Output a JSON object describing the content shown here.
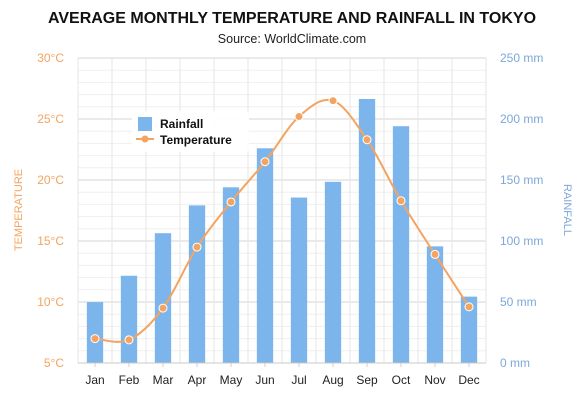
{
  "chart_data": {
    "type": "bar+line",
    "title": "AVERAGE MONTHLY TEMPERATURE AND RAINFALL IN TOKYO",
    "subtitle": "Source: WorldClimate.com",
    "categories": [
      "Jan",
      "Feb",
      "Mar",
      "Apr",
      "May",
      "Jun",
      "Jul",
      "Aug",
      "Sep",
      "Oct",
      "Nov",
      "Dec"
    ],
    "left_axis": {
      "label": "TEMPERATURE",
      "ticks": [
        "5°C",
        "10°C",
        "15°C",
        "20°C",
        "25°C",
        "30°C"
      ],
      "range": [
        5,
        30
      ],
      "color": "#f4a460"
    },
    "right_axis": {
      "label": "RAINFALL",
      "ticks": [
        "0 mm",
        "50 mm",
        "100 mm",
        "150 mm",
        "200 mm",
        "250 mm"
      ],
      "range": [
        0,
        250
      ],
      "color": "#7da7d9"
    },
    "series": [
      {
        "name": "Rainfall",
        "type": "bar",
        "axis": "right",
        "color": "#7cb5ec",
        "values": [
          49.9,
          71.5,
          106.4,
          129.2,
          144.0,
          176.0,
          135.6,
          148.5,
          216.4,
          194.1,
          95.6,
          54.4
        ]
      },
      {
        "name": "Temperature",
        "type": "line",
        "axis": "left",
        "color": "#f4a460",
        "values": [
          7.0,
          6.9,
          9.5,
          14.5,
          18.2,
          21.5,
          25.2,
          26.5,
          23.3,
          18.3,
          13.9,
          9.6
        ]
      }
    ],
    "legend_position": "top-left",
    "grid": true
  }
}
